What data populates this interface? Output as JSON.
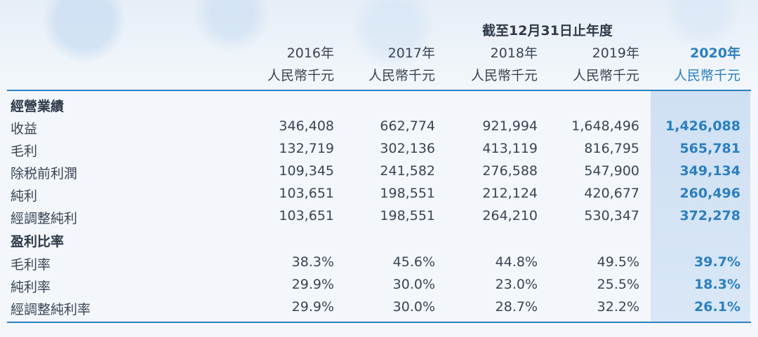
{
  "header": {
    "period": "截至12月31日止年度",
    "years": [
      "2016年",
      "2017年",
      "2018年",
      "2019年",
      "2020年"
    ],
    "units": [
      "人民幣千元",
      "人民幣千元",
      "人民幣千元",
      "人民幣千元",
      "人民幣千元"
    ]
  },
  "sections": [
    {
      "title": "經營業績",
      "rows": [
        {
          "label": "收益",
          "values": [
            "346,408",
            "662,774",
            "921,994",
            "1,648,496",
            "1,426,088"
          ]
        },
        {
          "label": "毛利",
          "values": [
            "132,719",
            "302,136",
            "413,119",
            "816,795",
            "565,781"
          ]
        },
        {
          "label": "除税前利潤",
          "values": [
            "109,345",
            "241,582",
            "276,588",
            "547,900",
            "349,134"
          ]
        },
        {
          "label": "純利",
          "values": [
            "103,651",
            "198,551",
            "212,124",
            "420,677",
            "260,496"
          ]
        },
        {
          "label": "經調整純利",
          "values": [
            "103,651",
            "198,551",
            "264,210",
            "530,347",
            "372,278"
          ]
        }
      ]
    },
    {
      "title": "盈利比率",
      "rows": [
        {
          "label": "毛利率",
          "values": [
            "38.3%",
            "45.6%",
            "44.8%",
            "49.5%",
            "39.7%"
          ]
        },
        {
          "label": "純利率",
          "values": [
            "29.9%",
            "30.0%",
            "23.0%",
            "25.5%",
            "18.3%"
          ]
        },
        {
          "label": "經調整純利率",
          "values": [
            "29.9%",
            "30.0%",
            "28.7%",
            "32.2%",
            "26.1%"
          ]
        }
      ]
    }
  ],
  "colors": {
    "accent": "#2a7fc1",
    "highlight": "#d4e4f5",
    "text": "#3a4452"
  }
}
